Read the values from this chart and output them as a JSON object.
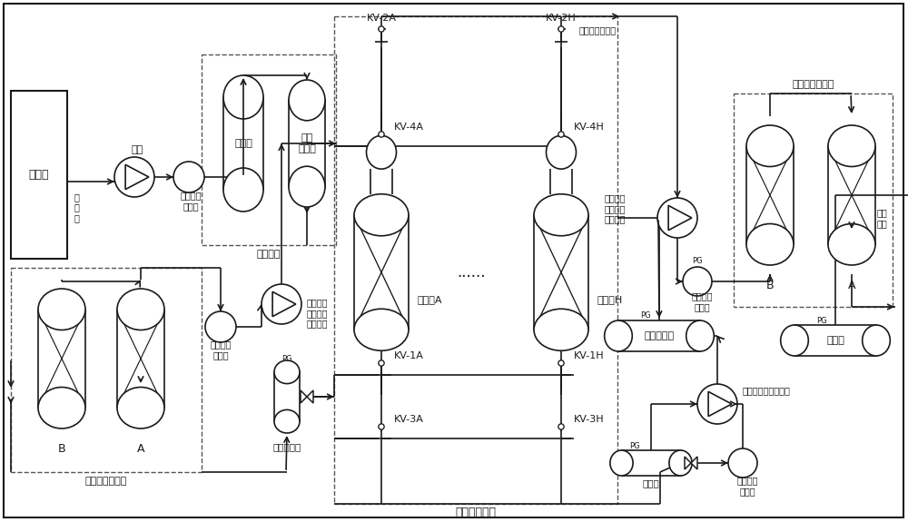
{
  "bg": "#ffffff",
  "lc": "#1a1a1a",
  "dc": "#555555",
  "lw": 1.2,
  "labels": {
    "fermentation_tank": "发酵池",
    "fan": "风机",
    "raw_gas": "原\n料\n气",
    "oil_sep1": "第一油水\n分离器",
    "desulf_tower": "脱硫塔",
    "gas_water_sep": "气水\n分离器",
    "desulf_section": "脱硫脱水",
    "mol_sieve1": "第一分子筛脱水",
    "mol_sieve2": "第二分子筛脱水",
    "oil_sep2": "第二油水\n分离器",
    "comp2": "往复式二\n级压缩机\n增压降温",
    "comp4": "往复式四\n级压缩机\n增压降温",
    "buffer1": "第一缓冲罐",
    "buffer2": "第二缓冲罐",
    "psa": "变压吸附吸氢",
    "adsorb_a": "吸附塔A",
    "adsorb_h": "吸附塔H",
    "dots": "......",
    "kv2a": "KV-2A",
    "kv2h": "KV-2H",
    "kv4a": "KV-4A",
    "kv4h": "KV-4H",
    "kv1a": "KV-1A",
    "kv1h": "KV-1H",
    "kv3a": "KV-3A",
    "kv3h": "KV-3H",
    "mixed_gas": "除氯后的混合气",
    "vac_pump": "水环真空泵减压脱吸",
    "vac_tank": "真空罐",
    "oil_sep3": "第三油水\n分离器",
    "oil_sep4": "第四油水\n分离器",
    "h2_tank": "储氢罐",
    "product_h2": "产品\n氢气",
    "pg": "PG"
  }
}
